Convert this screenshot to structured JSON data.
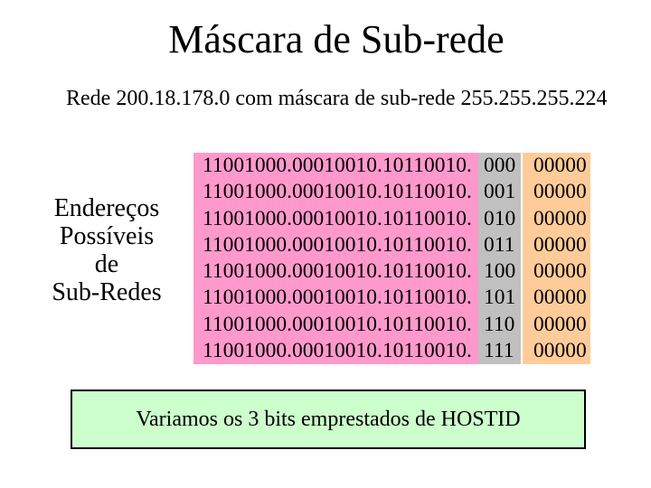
{
  "colors": {
    "pink": "#ff99cc",
    "gray": "#c0c0c0",
    "orange": "#ffcc99",
    "green": "#ccffcc",
    "text": "#000000",
    "background": "#ffffff"
  },
  "title": "Máscara de Sub-rede",
  "subtitle": "Rede 200.18.178.0 com máscara de sub-rede 255.255.255.224",
  "left_label": {
    "lines": [
      "Endereços",
      "Possíveis",
      "de",
      "Sub-Redes"
    ]
  },
  "table": {
    "rows": [
      {
        "prefix": "11001000.00010010.10110010.",
        "bits": "000",
        "host": "00000"
      },
      {
        "prefix": "11001000.00010010.10110010.",
        "bits": "001",
        "host": "00000"
      },
      {
        "prefix": "11001000.00010010.10110010.",
        "bits": "010",
        "host": "00000"
      },
      {
        "prefix": "11001000.00010010.10110010.",
        "bits": "011",
        "host": "00000"
      },
      {
        "prefix": "11001000.00010010.10110010.",
        "bits": "100",
        "host": "00000"
      },
      {
        "prefix": "11001000.00010010.10110010.",
        "bits": "101",
        "host": "00000"
      },
      {
        "prefix": "11001000.00010010.10110010.",
        "bits": "110",
        "host": "00000"
      },
      {
        "prefix": "11001000.00010010.10110010.",
        "bits": "111",
        "host": "00000"
      }
    ]
  },
  "footer": {
    "text": "Variamos os 3 bits emprestados de HOSTID"
  }
}
